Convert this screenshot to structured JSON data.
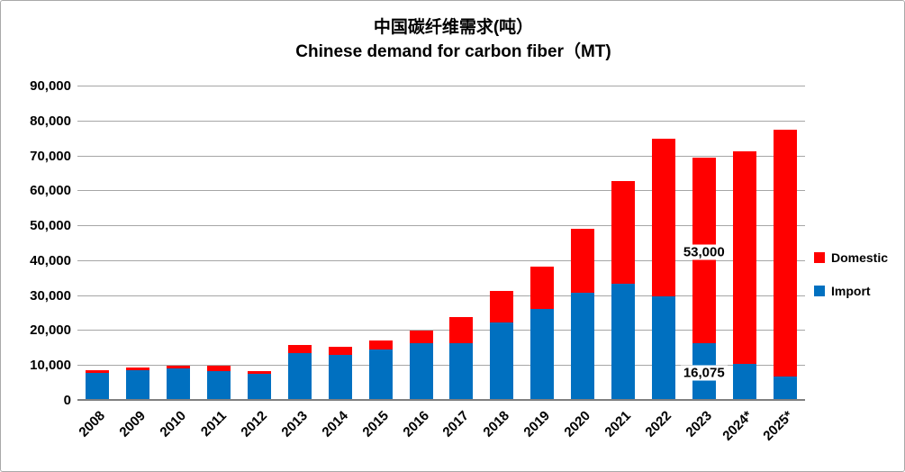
{
  "title": {
    "line_zh": "中国碳纤维需求(吨）",
    "line_en": "Chinese demand for carbon fiber（MT)"
  },
  "legend": {
    "domestic_label": "Domestic",
    "import_label": "Import"
  },
  "colors": {
    "domestic": "#FF0000",
    "import": "#0070C0",
    "gridline": "#A6A6A6",
    "axis": "#808080",
    "border": "#A9A9A9"
  },
  "y_axis": {
    "tick_labels": [
      "0",
      "10,000",
      "20,000",
      "30,000",
      "40,000",
      "50,000",
      "60,000",
      "70,000",
      "80,000",
      "90,000"
    ],
    "min": 0,
    "max": 90000,
    "step": 10000
  },
  "chart_data": {
    "type": "bar",
    "stacked": true,
    "title": "中国碳纤维需求(吨） Chinese demand for carbon fiber（MT)",
    "xlabel": "",
    "ylabel": "",
    "ylim": [
      0,
      90000
    ],
    "grid": true,
    "legend_position": "right",
    "categories": [
      "2008",
      "2009",
      "2010",
      "2011",
      "2012",
      "2013",
      "2014",
      "2015",
      "2016",
      "2017",
      "2018",
      "2019",
      "2020",
      "2021",
      "2022",
      "2023",
      "2024*",
      "2025*"
    ],
    "series": [
      {
        "name": "Import",
        "color": "#0070C0",
        "values": [
          7500,
          8200,
          8800,
          8000,
          7100,
          13200,
          12700,
          14200,
          15963,
          16087,
          22000,
          25840,
          30401,
          33129,
          29429,
          16075,
          10000,
          6500
        ]
      },
      {
        "name": "Domestic",
        "color": "#FF0000",
        "values": [
          700,
          800,
          800,
          1500,
          800,
          2300,
          2300,
          2600,
          3600,
          7400,
          9000,
          12000,
          18450,
          29250,
          45000,
          53000,
          61000,
          70500
        ]
      }
    ],
    "totals": [
      8200,
      9000,
      9600,
      9500,
      7900,
      15500,
      15000,
      16800,
      19563,
      23487,
      31000,
      37840,
      48851,
      62379,
      74429,
      69075,
      71000,
      77000
    ],
    "annotations": [
      {
        "text": "53,000",
        "category": "2023",
        "series": "Domestic"
      },
      {
        "text": "16,075",
        "category": "2023",
        "series": "Import"
      }
    ]
  }
}
